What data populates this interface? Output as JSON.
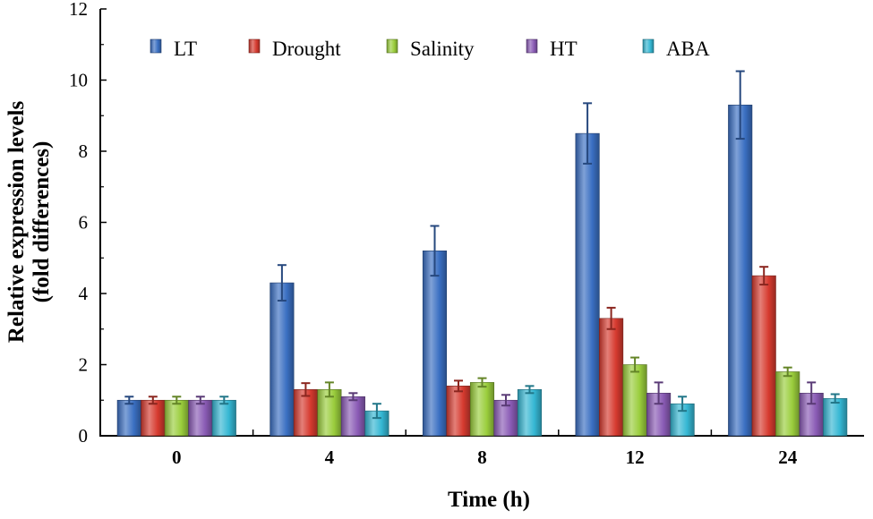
{
  "chart_data": {
    "type": "bar",
    "title": "",
    "xlabel": "Time (h)",
    "ylabel_line1": "Relative expression levels",
    "ylabel_line2": "(fold differences)",
    "ylim": [
      0,
      12
    ],
    "yticks": [
      0,
      2,
      4,
      6,
      8,
      10,
      12
    ],
    "categories": [
      "0",
      "4",
      "8",
      "12",
      "24"
    ],
    "legend_position": "top",
    "series": [
      {
        "name": "LT",
        "color": "#3a6fc2",
        "values": [
          1.0,
          4.3,
          5.2,
          8.5,
          9.3
        ],
        "errors": [
          0.1,
          0.5,
          0.7,
          0.85,
          0.95
        ]
      },
      {
        "name": "Drought",
        "color": "#d63a2f",
        "values": [
          1.0,
          1.3,
          1.4,
          3.3,
          4.5
        ],
        "errors": [
          0.1,
          0.18,
          0.15,
          0.3,
          0.25
        ]
      },
      {
        "name": "Salinity",
        "color": "#9acd3c",
        "values": [
          1.0,
          1.3,
          1.5,
          2.0,
          1.8
        ],
        "errors": [
          0.1,
          0.2,
          0.12,
          0.2,
          0.12
        ]
      },
      {
        "name": "HT",
        "color": "#8a5bb5",
        "values": [
          1.0,
          1.1,
          1.0,
          1.2,
          1.2
        ],
        "errors": [
          0.1,
          0.1,
          0.15,
          0.3,
          0.3
        ]
      },
      {
        "name": "ABA",
        "color": "#35b7d3",
        "values": [
          1.0,
          0.7,
          1.3,
          0.9,
          1.05
        ],
        "errors": [
          0.1,
          0.2,
          0.1,
          0.2,
          0.12
        ]
      }
    ]
  }
}
